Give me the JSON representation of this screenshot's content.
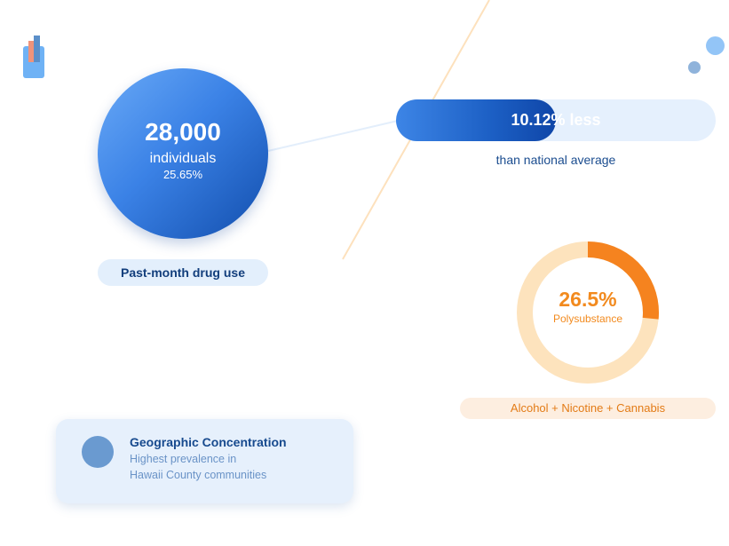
{
  "population_stat": {
    "value": "28,000",
    "unit": "individuals",
    "percent": "25.65%",
    "label": "Past-month drug use"
  },
  "comparison": {
    "value_text": "10.12% less",
    "caption": "than national average",
    "fill_fraction": 0.5
  },
  "polysubstance": {
    "value_text": "26.5%",
    "label": "Polysubstance",
    "fraction": 0.265,
    "substances": "Alcohol + Nicotine + Cannabis"
  },
  "geography": {
    "title": "Geographic Concentration",
    "line1": "Highest prevalence in",
    "line2": "Hawaii County communities"
  },
  "colors": {
    "primary_blue": "#3b82e6",
    "dark_blue": "#123e7c",
    "light_blue": "#e5f0fd",
    "orange": "#f5831f",
    "light_orange": "#fde3bd"
  },
  "icons": {
    "logo": "bar-chart-logo-icon",
    "geo": "location-dot-icon"
  }
}
